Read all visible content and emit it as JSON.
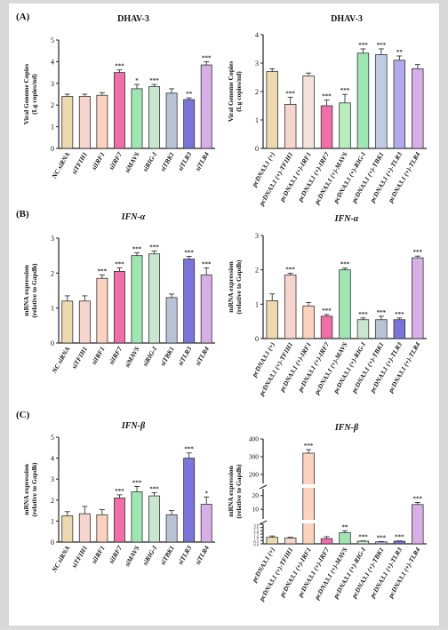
{
  "panel_letters": [
    "(A)",
    "(B)",
    "(C)"
  ],
  "colors": {
    "axis": "#222222",
    "bar_stroke": "#333333",
    "star": "#333333"
  },
  "chart_data": [
    {
      "id": "A-left",
      "type": "bar",
      "panel_letter": "(A)",
      "title": "DHAV-3",
      "ylabel_lines": [
        "Viral Genome Copies",
        "(Lg copies/ml)"
      ],
      "ylim": [
        0,
        5
      ],
      "yticks": [
        "0",
        "1",
        "2",
        "3",
        "4",
        "5"
      ],
      "categories": [
        "NC siRNA",
        "siTFIH1",
        "siIRF1",
        "siIRF7",
        "siMAVS",
        "siRIG-I",
        "siTBK1",
        "siTLR3",
        "siTLR4"
      ],
      "values": [
        2.4,
        2.4,
        2.45,
        3.5,
        2.75,
        2.85,
        2.55,
        2.25,
        3.85
      ],
      "errors": [
        0.1,
        0.1,
        0.12,
        0.12,
        0.2,
        0.1,
        0.2,
        0.08,
        0.15
      ],
      "stars": [
        "",
        "",
        "",
        "***",
        "*",
        "***",
        "",
        "**",
        "***"
      ],
      "colors": [
        "#ecd9b0",
        "#f7d5cf",
        "#fbd2bd",
        "#f06fa6",
        "#9fe6b3",
        "#c9e7d0",
        "#bac2d6",
        "#7b74d8",
        "#d8aee6"
      ]
    },
    {
      "id": "A-right",
      "type": "bar",
      "title": "DHAV-3",
      "ylabel_lines": [
        "Viral Genome Copies",
        "(Lg copies/ml)"
      ],
      "ylim": [
        0,
        4
      ],
      "yticks": [
        "0",
        "1",
        "2",
        "3",
        "4"
      ],
      "categories": [
        "pcDNA3.1 (+)",
        "pcDNA3.1 (+)-TFIH1",
        "pcDNA3.1 (+)-IRF1",
        "pcDNA3.1 (+)-IRF7",
        "pcDNA3.1 (+)-MAVS",
        "pcDNA3.1 (+)-RIG-I",
        "pcDNA3.1 (+)-TBK1",
        "pcDNA3.1 (+)-TLR3",
        "pcDNA3.1 (+)-TLR4"
      ],
      "values": [
        2.7,
        1.55,
        2.55,
        1.5,
        1.6,
        3.35,
        3.3,
        3.1,
        2.8
      ],
      "errors": [
        0.1,
        0.25,
        0.1,
        0.2,
        0.3,
        0.15,
        0.2,
        0.15,
        0.15
      ],
      "stars": [
        "",
        "***",
        "",
        "***",
        "***",
        "***",
        "***",
        "**",
        ""
      ],
      "colors": [
        "#ecd9b0",
        "#f7d5cf",
        "#f3e3dc",
        "#f06fa6",
        "#b8eebd",
        "#9fe6b3",
        "#c0cbe4",
        "#b2a9ea",
        "#d8aee6"
      ]
    },
    {
      "id": "B-left",
      "type": "bar",
      "panel_letter": "(B)",
      "title": "IFN-α",
      "ylabel_lines": [
        "mRNA expression",
        "(relative to Gapdh)"
      ],
      "ylim": [
        0,
        3
      ],
      "yticks": [
        "0",
        "1",
        "2",
        "3"
      ],
      "categories": [
        "NC siRNA",
        "siTFIH1",
        "siIRF1",
        "siIRF7",
        "siMAVS",
        "siRIG-I",
        "siTBK1",
        "siTLR3",
        "siTLR4"
      ],
      "values": [
        1.2,
        1.2,
        1.85,
        2.05,
        2.5,
        2.55,
        1.3,
        2.4,
        1.95
      ],
      "errors": [
        0.15,
        0.15,
        0.1,
        0.1,
        0.08,
        0.08,
        0.1,
        0.08,
        0.2
      ],
      "stars": [
        "",
        "",
        "***",
        "***",
        "***",
        "***",
        "",
        "***",
        "***"
      ],
      "colors": [
        "#ecd9b0",
        "#f7d5cf",
        "#fbd2bd",
        "#f06fa6",
        "#9fe6b3",
        "#c9e7d0",
        "#bac2d6",
        "#7b74d8",
        "#d8aee6"
      ]
    },
    {
      "id": "B-right",
      "type": "bar",
      "title": "IFN-α",
      "ylabel_lines": [
        "mRNA expression",
        "(relative to Gapdh)"
      ],
      "ylim": [
        0,
        3
      ],
      "yticks": [
        "0",
        "1",
        "2",
        "3"
      ],
      "categories": [
        "pcDNA3.1 (+)",
        "pcDNA3.1 (+)-TFIH1",
        "pcDNA3.1 (+)-IRF1",
        "pcDNA3.1 (+)-IRF7",
        "pcDNA3.1 (+)-MAVS",
        "pcDNA3.1 (+)-RIG-I",
        "pcDNA3.1 (+)-TBK1",
        "pcDNA3.1 (+)-TLR3",
        "pcDNA3.1 (+)-TLR4"
      ],
      "values": [
        1.1,
        1.85,
        0.95,
        0.65,
        2.0,
        0.55,
        0.55,
        0.55,
        2.35
      ],
      "errors": [
        0.2,
        0.05,
        0.1,
        0.05,
        0.05,
        0.05,
        0.1,
        0.05,
        0.05
      ],
      "stars": [
        "",
        "***",
        "",
        "***",
        "***",
        "***",
        "***",
        "***",
        "***"
      ],
      "colors": [
        "#ecd9b0",
        "#f7d5cf",
        "#fbd2bd",
        "#f06fa6",
        "#9fe6b3",
        "#c9e7d0",
        "#bac2d6",
        "#7b74d8",
        "#d8aee6"
      ]
    },
    {
      "id": "C-left",
      "type": "bar",
      "panel_letter": "(C)",
      "title": "IFN-β",
      "ylabel_lines": [
        "mRNA expression",
        "(relative to Gapdh)"
      ],
      "ylim": [
        0,
        5
      ],
      "yticks": [
        "0",
        "1",
        "2",
        "3",
        "4",
        "5"
      ],
      "categories": [
        "NC siRNA",
        "siTFIH1",
        "siIRF1",
        "siIRF7",
        "siMAVS",
        "siRIG-I",
        "siTBK1",
        "siTLR3",
        "siTLR4"
      ],
      "values": [
        1.25,
        1.35,
        1.3,
        2.1,
        2.4,
        2.2,
        1.3,
        4.0,
        1.8
      ],
      "errors": [
        0.2,
        0.35,
        0.25,
        0.15,
        0.25,
        0.15,
        0.2,
        0.25,
        0.35
      ],
      "stars": [
        "",
        "",
        "",
        "***",
        "***",
        "***",
        "",
        "***",
        "*"
      ],
      "colors": [
        "#ecd9b0",
        "#f7d5cf",
        "#fbd2bd",
        "#f06fa6",
        "#9fe6b3",
        "#c9e7d0",
        "#bac2d6",
        "#7b74d8",
        "#d8aee6"
      ]
    },
    {
      "id": "C-right",
      "type": "bar",
      "title": "IFN-β",
      "ylabel_lines": [
        "mRNA expression",
        "(relative to Gapdh)"
      ],
      "broken_axis": true,
      "ylim": [
        0,
        400
      ],
      "yticks_lower": [
        "0.0",
        "0.5",
        "1.0",
        "1.5",
        "2.0",
        "2.5",
        "3.0"
      ],
      "yticks_mid": [
        "10",
        "20"
      ],
      "yticks_upper": [
        "200",
        "300",
        "400"
      ],
      "categories": [
        "pcDNA3.1 (+)",
        "pcDNA3.1 (+)-TFIH1",
        "pcDNA3.1 (+)-IRF1",
        "pcDNA3.1 (+)-IRF7",
        "pcDNA3.1 (+)-MAVS",
        "pcDNA3.1 (+)-RIG-I",
        "pcDNA3.1 (+)-TBK1",
        "pcDNA3.1 (+)-TLR3",
        "pcDNA3.1 (+)-TLR4"
      ],
      "values": [
        1.0,
        0.9,
        320,
        0.8,
        1.7,
        0.4,
        0.3,
        0.4,
        13.5
      ],
      "errors": [
        0.2,
        0.1,
        20,
        0.3,
        0.3,
        0.05,
        0.05,
        0.05,
        1.5
      ],
      "stars": [
        "",
        "",
        "***",
        "",
        "**",
        "***",
        "***",
        "***",
        "***"
      ],
      "colors": [
        "#ecd9b0",
        "#f7d5cf",
        "#fbd2bd",
        "#f06fa6",
        "#9fe6b3",
        "#c9e7d0",
        "#bac2d6",
        "#7b74d8",
        "#d8aee6"
      ]
    }
  ]
}
